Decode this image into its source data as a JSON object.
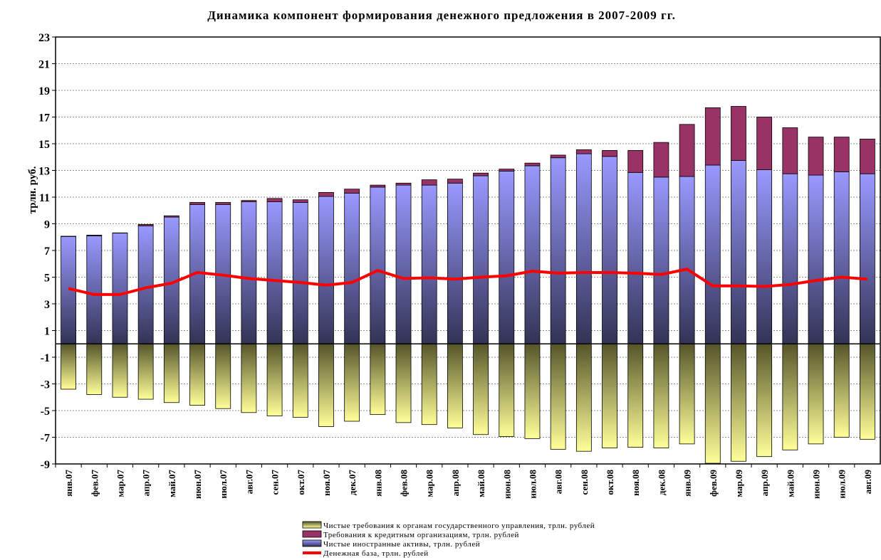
{
  "chart_data": {
    "type": "bar",
    "title": "Динамика компонент формирования денежного предложения в 2007-2009 гг.",
    "y_label": "трлн. руб.",
    "categories": [
      "янв.07",
      "фев.07",
      "мар.07",
      "апр.07",
      "май.07",
      "июн.07",
      "июл.07",
      "авг.07",
      "сен.07",
      "окт.07",
      "ноя.07",
      "дек.07",
      "янв.08",
      "фев.08",
      "мар.08",
      "апр.08",
      "май.08",
      "июн.08",
      "июл.08",
      "авг.08",
      "сен.08",
      "окт.08",
      "ноя.08",
      "дек.08",
      "янв.09",
      "фев.09",
      "мар.09",
      "апр.09",
      "май.09",
      "июн.09",
      "июл.09",
      "авг.09"
    ],
    "series": [
      {
        "name": "Чистые требования к органам государственного управления, трлн. рублей",
        "type": "bar",
        "color": "#ffff99",
        "values": [
          -3.4,
          -3.8,
          -4.0,
          -4.15,
          -4.4,
          -4.6,
          -4.85,
          -5.15,
          -5.4,
          -5.5,
          -6.2,
          -5.8,
          -5.3,
          -5.9,
          -6.05,
          -6.3,
          -6.8,
          -6.95,
          -7.1,
          -7.9,
          -8.05,
          -7.8,
          -7.75,
          -7.8,
          -7.5,
          -8.95,
          -8.8,
          -8.45,
          -7.95,
          -7.5,
          -7.0,
          -7.15
        ]
      },
      {
        "name": "Требования к кредитным организациям, трлн. рублей",
        "type": "bar",
        "color": "#993366",
        "values": [
          0.02,
          0.05,
          0.02,
          0.1,
          0.1,
          0.15,
          0.15,
          0.1,
          0.25,
          0.2,
          0.3,
          0.3,
          0.15,
          0.15,
          0.4,
          0.3,
          0.2,
          0.15,
          0.2,
          0.2,
          0.3,
          0.45,
          1.65,
          2.6,
          3.9,
          4.3,
          4.05,
          3.95,
          3.45,
          2.85,
          2.6,
          2.6
        ]
      },
      {
        "name": "Чистые иностранные активы, трлн. рублей",
        "type": "bar",
        "color": "#9999ff",
        "values": [
          8.05,
          8.1,
          8.3,
          8.85,
          9.5,
          10.45,
          10.45,
          10.65,
          10.65,
          10.6,
          11.05,
          11.3,
          11.75,
          11.9,
          11.9,
          12.05,
          12.6,
          12.95,
          13.35,
          13.95,
          14.25,
          14.05,
          12.85,
          12.5,
          12.55,
          13.4,
          13.75,
          13.05,
          12.75,
          12.65,
          12.9,
          12.75
        ]
      },
      {
        "name": "Денежная база, трлн. рублей",
        "type": "line",
        "color": "#ff0000",
        "values": [
          4.15,
          3.7,
          3.7,
          4.2,
          4.55,
          5.35,
          5.15,
          4.9,
          4.75,
          4.6,
          4.4,
          4.6,
          5.5,
          4.9,
          4.95,
          4.85,
          5.0,
          5.1,
          5.45,
          5.3,
          5.35,
          5.35,
          5.3,
          5.2,
          5.6,
          4.35,
          4.35,
          4.3,
          4.45,
          4.75,
          5.0,
          4.85
        ]
      }
    ],
    "ylim": [
      -9,
      23
    ],
    "yticks": [
      -9,
      -7,
      -5,
      -3,
      -1,
      1,
      3,
      5,
      7,
      9,
      11,
      13,
      15,
      17,
      19,
      21,
      23
    ],
    "grid": true
  }
}
